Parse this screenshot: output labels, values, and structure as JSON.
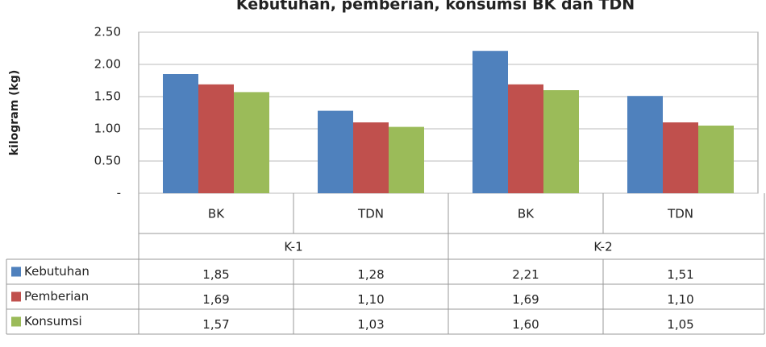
{
  "chart_data": {
    "type": "bar",
    "title": "Kebutuhan, pemberian, konsumsi BK dan TDN",
    "ylabel": "kilogram (kg)",
    "categories": [
      "BK",
      "TDN",
      "BK",
      "TDN"
    ],
    "groups": [
      "K-1",
      "K-2"
    ],
    "series": [
      {
        "name": "Kebutuhan",
        "color": "#4f81bd",
        "values": [
          1.85,
          1.28,
          2.21,
          1.51
        ],
        "value_labels": [
          "1,85",
          "1,28",
          "2,21",
          "1,51"
        ]
      },
      {
        "name": "Pemberian",
        "color": "#c0504d",
        "values": [
          1.69,
          1.1,
          1.69,
          1.1
        ],
        "value_labels": [
          "1,69",
          "1,10",
          "1,69",
          "1,10"
        ]
      },
      {
        "name": "Konsumsi",
        "color": "#9bbb59",
        "values": [
          1.57,
          1.03,
          1.6,
          1.05
        ],
        "value_labels": [
          "1,57",
          "1,03",
          "1,60",
          "1,05"
        ]
      }
    ],
    "ylim": [
      0,
      2.5
    ],
    "yticks": [
      {
        "value": 0,
        "label": "-"
      },
      {
        "value": 0.5,
        "label": "0.50"
      },
      {
        "value": 1,
        "label": "1.00"
      },
      {
        "value": 1.5,
        "label": "1.50"
      },
      {
        "value": 2,
        "label": "2.00"
      },
      {
        "value": 2.5,
        "label": "2.50"
      }
    ],
    "grid": true
  }
}
